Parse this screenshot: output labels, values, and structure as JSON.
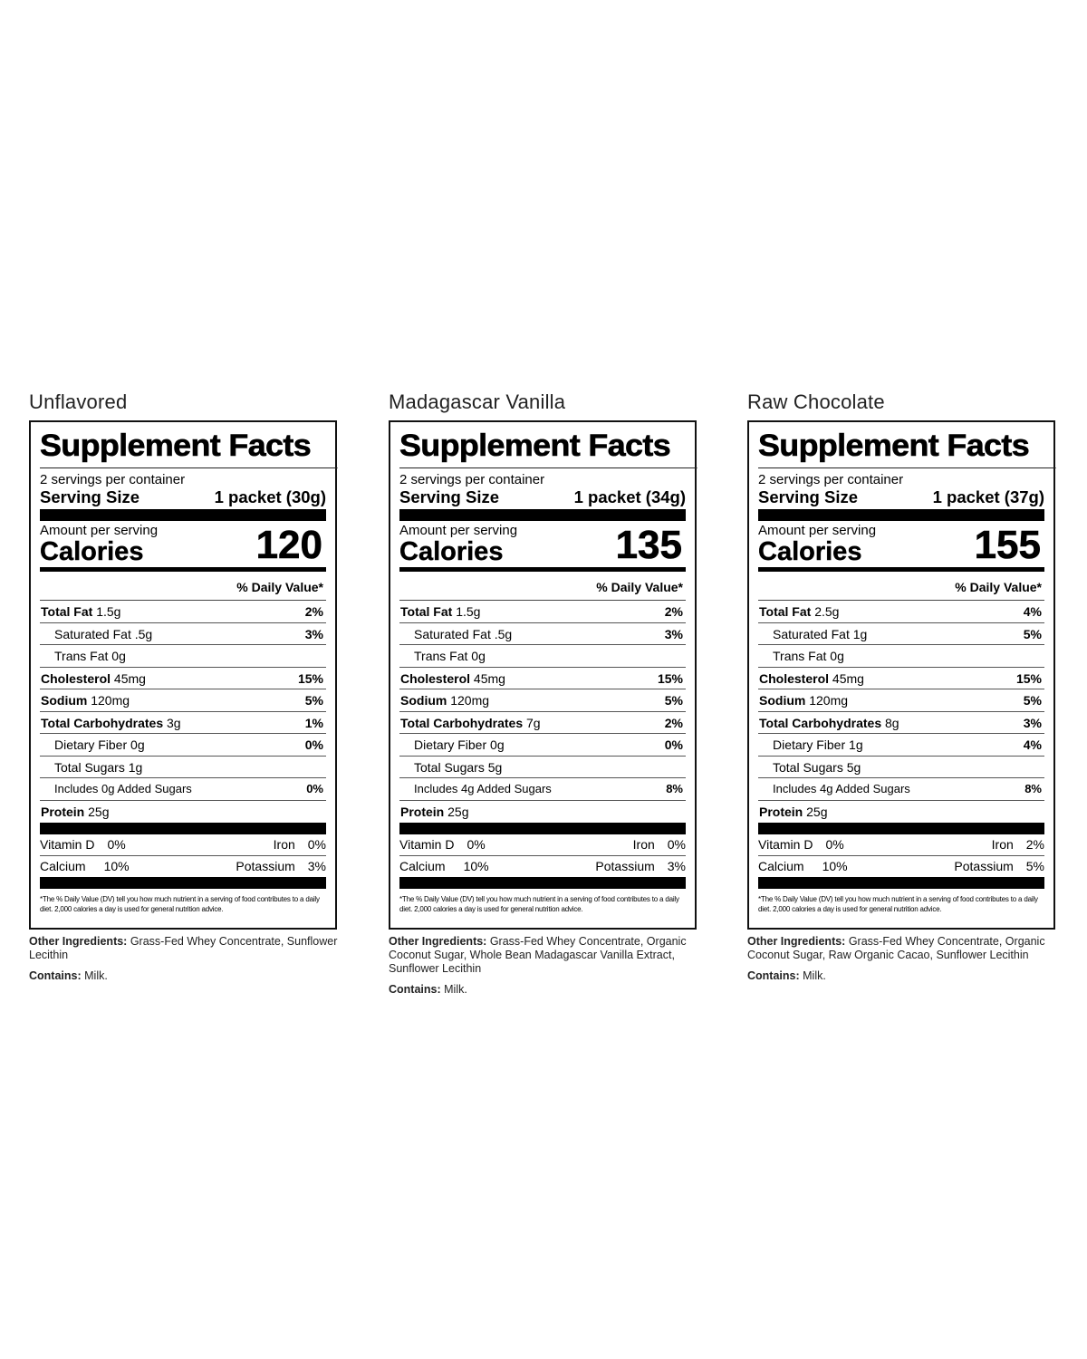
{
  "common": {
    "heading": "Supplement Facts",
    "servings": "2 servings per container",
    "serving_size_label": "Serving Size",
    "amount_label": "Amount per serving",
    "calories_label": "Calories",
    "dv_header": "% Daily Value*",
    "footnote": "*The % Daily Value (DV) tell you how much nutrient in a serving of food contributes to a daily diet. 2,000 calories a day is used for general nutrition advice.",
    "other_ingredients_label": "Other Ingredients:",
    "contains_label": "Contains:",
    "vitamin_d_label": "Vitamin D",
    "iron_label": "Iron",
    "calcium_label": "Calcium",
    "potassium_label": "Potassium"
  },
  "panels": [
    {
      "flavor": "Unflavored",
      "serving_size": "1 packet (30g)",
      "calories": "120",
      "rows": [
        {
          "label": "Total Fat",
          "amount": "1.5g",
          "dv": "2%",
          "bold": true
        },
        {
          "label": "Saturated Fat",
          "amount": ".5g",
          "dv": "3%",
          "indent": true
        },
        {
          "label": "Trans Fat",
          "amount": "0g",
          "dv": "",
          "indent": true
        },
        {
          "label": "Cholesterol",
          "amount": "45mg",
          "dv": "15%",
          "bold": true
        },
        {
          "label": "Sodium",
          "amount": "120mg",
          "dv": "5%",
          "bold": true
        },
        {
          "label": "Total Carbohydrates",
          "amount": "3g",
          "dv": "1%",
          "bold": true
        },
        {
          "label": "Dietary Fiber",
          "amount": "0g",
          "dv": "0%",
          "indent": true
        },
        {
          "label": "Total Sugars",
          "amount": "1g",
          "dv": "",
          "indent": true
        },
        {
          "label": "Includes 0g Added Sugars",
          "amount": "",
          "dv": "0%",
          "indent": true,
          "small": true
        },
        {
          "label": "Protein",
          "amount": "25g",
          "dv": "",
          "bold": true
        }
      ],
      "vitamin_d": "0%",
      "iron": "0%",
      "calcium": "10%",
      "potassium": "3%",
      "other_ingredients": "Grass-Fed Whey Concentrate, Sunflower Lecithin",
      "contains": "Milk."
    },
    {
      "flavor": "Madagascar Vanilla",
      "serving_size": "1 packet (34g)",
      "calories": "135",
      "rows": [
        {
          "label": "Total Fat",
          "amount": "1.5g",
          "dv": "2%",
          "bold": true
        },
        {
          "label": "Saturated Fat",
          "amount": ".5g",
          "dv": "3%",
          "indent": true
        },
        {
          "label": "Trans Fat",
          "amount": "0g",
          "dv": "",
          "indent": true
        },
        {
          "label": "Cholesterol",
          "amount": "45mg",
          "dv": "15%",
          "bold": true
        },
        {
          "label": "Sodium",
          "amount": "120mg",
          "dv": "5%",
          "bold": true
        },
        {
          "label": "Total Carbohydrates",
          "amount": "7g",
          "dv": "2%",
          "bold": true
        },
        {
          "label": "Dietary Fiber",
          "amount": "0g",
          "dv": "0%",
          "indent": true
        },
        {
          "label": "Total Sugars",
          "amount": "5g",
          "dv": "",
          "indent": true
        },
        {
          "label": "Includes 4g Added Sugars",
          "amount": "",
          "dv": "8%",
          "indent": true,
          "small": true
        },
        {
          "label": "Protein",
          "amount": "25g",
          "dv": "",
          "bold": true
        }
      ],
      "vitamin_d": "0%",
      "iron": "0%",
      "calcium": "10%",
      "potassium": "3%",
      "other_ingredients": "Grass-Fed Whey Concentrate, Organic Coconut Sugar, Whole Bean Madagascar Vanilla Extract, Sunflower Lecithin",
      "contains": "Milk."
    },
    {
      "flavor": "Raw Chocolate",
      "serving_size": "1 packet (37g)",
      "calories": "155",
      "rows": [
        {
          "label": "Total Fat",
          "amount": "2.5g",
          "dv": "4%",
          "bold": true
        },
        {
          "label": "Saturated Fat",
          "amount": "1g",
          "dv": "5%",
          "indent": true
        },
        {
          "label": "Trans Fat",
          "amount": "0g",
          "dv": "",
          "indent": true
        },
        {
          "label": "Cholesterol",
          "amount": "45mg",
          "dv": "15%",
          "bold": true
        },
        {
          "label": "Sodium",
          "amount": "120mg",
          "dv": "5%",
          "bold": true
        },
        {
          "label": "Total Carbohydrates",
          "amount": "8g",
          "dv": "3%",
          "bold": true
        },
        {
          "label": "Dietary Fiber",
          "amount": "1g",
          "dv": "4%",
          "indent": true
        },
        {
          "label": "Total Sugars",
          "amount": "5g",
          "dv": "",
          "indent": true
        },
        {
          "label": "Includes 4g Added Sugars",
          "amount": "",
          "dv": "8%",
          "indent": true,
          "small": true
        },
        {
          "label": "Protein",
          "amount": "25g",
          "dv": "",
          "bold": true
        }
      ],
      "vitamin_d": "0%",
      "iron": "2%",
      "calcium": "10%",
      "potassium": "5%",
      "other_ingredients": "Grass-Fed Whey Concentrate, Organic Coconut Sugar, Raw Organic Cacao, Sunflower Lecithin",
      "contains": "Milk."
    }
  ]
}
